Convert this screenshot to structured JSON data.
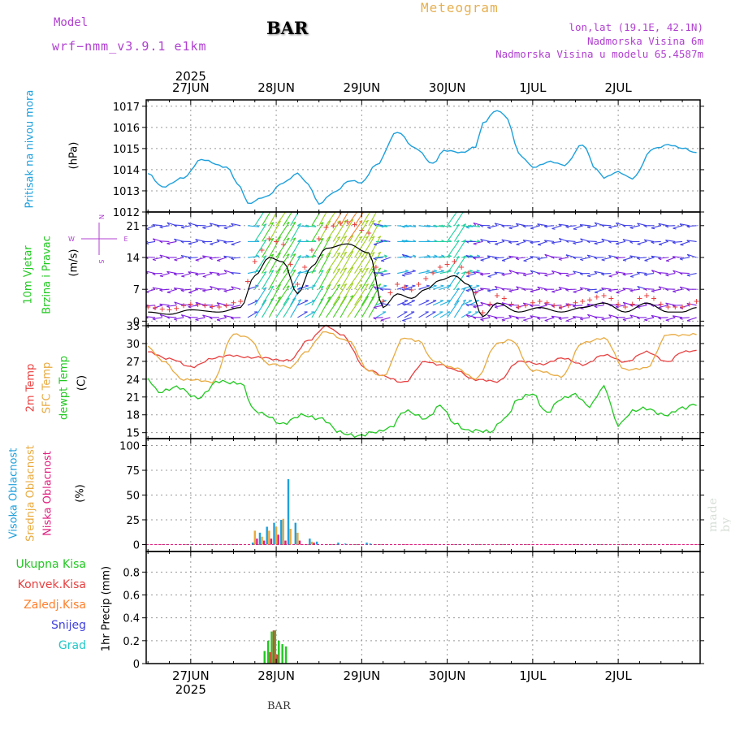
{
  "header": {
    "model_label": "Model",
    "model_value": "wrf−nmm_v3.9.1 e1km",
    "station": "BAR",
    "product": "Meteogram",
    "coords": "lon,lat (19.1E, 42.1N)",
    "elevation": "Nadmorska Visina 6m",
    "model_elevation": "Nadmorska Visina u modelu 65.4587m"
  },
  "footer": {
    "station": "BAR",
    "credit": "made by Angel"
  },
  "time_axis": {
    "year": "2025",
    "days": [
      "27JUN",
      "28JUN",
      "29JUN",
      "30JUN",
      "1JUL",
      "2JUL"
    ],
    "start": "26JUN 12",
    "end": "2JUL 18",
    "step_hours": 1
  },
  "colors": {
    "pressure": "#1ea0dc",
    "temp_2m": "#e84040",
    "temp_sfc": "#e8aa40",
    "dewpoint": "#20c820",
    "cloud_high": "#1ea0dc",
    "cloud_mid": "#e8aa40",
    "cloud_low": "#e02080",
    "precip_total": "#20c820",
    "precip_conv": "#e84040",
    "precip_frozen": "#ff7f2a",
    "snow": "#4040e0",
    "graupel": "#20c8c8",
    "wind_label": "#20c820",
    "compass": "#b040d0"
  },
  "chart_data": [
    {
      "id": "pressure",
      "type": "line",
      "ylabel_name": "Pritisak na nivou mora",
      "ylabel_unit": "(hPa)",
      "ylim": [
        1012,
        1017.3
      ],
      "yticks": [
        1012,
        1013,
        1014,
        1015,
        1016,
        1017
      ],
      "keypoints_hours": [
        0,
        4,
        10,
        15,
        22,
        26,
        28,
        33,
        38,
        42,
        45,
        48,
        52,
        57,
        60,
        64,
        70,
        75,
        80,
        83,
        88,
        92,
        94,
        98,
        100,
        105,
        108,
        113,
        117,
        122,
        126,
        128,
        132,
        136,
        142,
        146,
        150,
        154
      ],
      "keypoints_values": [
        1013.8,
        1013.2,
        1013.6,
        1014.5,
        1014.1,
        1013.2,
        1012.4,
        1012.7,
        1013.4,
        1013.8,
        1013.3,
        1012.4,
        1012.9,
        1013.5,
        1013.4,
        1014.2,
        1015.8,
        1015.0,
        1014.3,
        1014.9,
        1014.8,
        1015.1,
        1016.2,
        1016.8,
        1016.6,
        1014.6,
        1014.1,
        1014.4,
        1014.2,
        1015.2,
        1014.0,
        1013.6,
        1013.9,
        1013.6,
        1015.0,
        1015.2,
        1015.0,
        1014.8
      ]
    },
    {
      "id": "wind",
      "type": "scatter",
      "ylabel_name": "10m Vjetar",
      "ylabel_name2": "Brzina i Pravac",
      "ylabel_unit": "(m/s)",
      "compass": {
        "n": "N",
        "w": "W",
        "e": "E",
        "s": "S"
      },
      "ylim": [
        -1,
        24
      ],
      "yticks": [
        0,
        7,
        14,
        21
      ],
      "speed_keypoints_hours": [
        0,
        6,
        12,
        20,
        26,
        30,
        34,
        38,
        42,
        46,
        50,
        56,
        62,
        66,
        70,
        74,
        78,
        82,
        86,
        90,
        94,
        98,
        104,
        110,
        116,
        122,
        128,
        134,
        140,
        146,
        150,
        154
      ],
      "speed_keypoints_values": [
        2,
        1.5,
        2.5,
        2,
        3,
        10,
        14,
        13,
        6,
        12,
        16,
        17,
        15,
        3,
        6,
        5,
        7,
        9,
        10,
        8,
        1,
        4,
        2,
        3,
        2,
        3,
        4,
        2,
        4,
        2,
        2,
        3
      ]
    },
    {
      "id": "temperature",
      "type": "line",
      "ylabel_name": "2m Temp",
      "ylabel_name2": "SFC Temp",
      "ylabel_name3": "dewpt Temp",
      "ylabel_unit": "(C)",
      "ylim": [
        14,
        33
      ],
      "yticks": [
        15,
        18,
        21,
        24,
        27,
        30,
        33
      ],
      "series": [
        {
          "name": "2m Temp",
          "color": "#e84040",
          "keypoints_hours": [
            0,
            6,
            12,
            18,
            24,
            30,
            40,
            45,
            50,
            54,
            62,
            66,
            72,
            78,
            82,
            86,
            92,
            98,
            104,
            110,
            116,
            122,
            128,
            134,
            140,
            146,
            150,
            154
          ],
          "keypoints_values": [
            28.5,
            27.5,
            26,
            27.5,
            28,
            27.6,
            27.2,
            30.5,
            33,
            31.5,
            25.5,
            24.5,
            23.5,
            27,
            26.5,
            25.5,
            24,
            23.5,
            27,
            26.5,
            27.5,
            26.5,
            28,
            27,
            28.5,
            27,
            28.5,
            28.8
          ]
        },
        {
          "name": "SFC Temp",
          "color": "#e8aa40",
          "keypoints_hours": [
            0,
            4,
            10,
            18,
            24,
            28,
            34,
            40,
            44,
            50,
            56,
            62,
            66,
            72,
            76,
            80,
            86,
            92,
            98,
            102,
            108,
            116,
            122,
            128,
            134,
            140,
            146,
            150,
            154
          ],
          "keypoints_values": [
            29.5,
            27,
            24,
            23.5,
            31.5,
            31,
            26.5,
            26,
            28.5,
            32,
            30.5,
            25.5,
            24.5,
            31,
            30.5,
            27,
            26,
            24,
            30,
            30.5,
            25.5,
            24.5,
            30,
            31,
            25.5,
            26,
            31.5,
            31.5,
            31.5
          ]
        },
        {
          "name": "dewpt Temp",
          "color": "#20c820",
          "keypoints_hours": [
            0,
            3,
            8,
            14,
            20,
            26,
            30,
            33,
            38,
            44,
            48,
            54,
            60,
            64,
            68,
            72,
            78,
            82,
            86,
            90,
            96,
            100,
            104,
            108,
            112,
            116,
            120,
            124,
            128,
            132,
            136,
            140,
            146,
            150,
            154
          ],
          "keypoints_values": [
            24,
            22,
            22.5,
            21,
            23.5,
            23.5,
            18.5,
            18,
            16.5,
            18,
            17.5,
            15,
            14.5,
            15,
            16,
            18.5,
            17.5,
            19.5,
            16.5,
            15.5,
            15,
            17.5,
            20.5,
            21.5,
            18.5,
            20.5,
            21.5,
            19.5,
            22.5,
            16.5,
            18.5,
            19,
            18,
            19,
            20
          ]
        }
      ]
    },
    {
      "id": "cloud",
      "type": "bar",
      "ylabel_name": "Visoka Oblacnost",
      "ylabel_name2": "Srednja Oblacnost",
      "ylabel_name3": "Niska Oblacnost",
      "ylabel_unit": "(%)",
      "ylim": [
        -7,
        107
      ],
      "yticks": [
        0,
        25,
        50,
        75,
        100
      ],
      "series": [
        {
          "name": "Visoka Oblacnost",
          "color": "#1ea0dc",
          "hours": [
            30,
            32,
            34,
            36,
            38,
            40,
            42,
            46,
            48,
            54,
            56,
            62,
            63
          ],
          "values": [
            2,
            12,
            18,
            22,
            25,
            66,
            22,
            6,
            3,
            2,
            1,
            2,
            1
          ]
        },
        {
          "name": "Srednja Oblacnost",
          "color": "#e8aa40",
          "hours": [
            30,
            32,
            34,
            36,
            38,
            40,
            42,
            46
          ],
          "values": [
            14,
            8,
            14,
            18,
            26,
            16,
            12,
            3
          ]
        },
        {
          "name": "Niska Oblacnost",
          "color": "#e02080",
          "hours": [
            30,
            32,
            34,
            36,
            38,
            42,
            46
          ],
          "values": [
            6,
            4,
            6,
            10,
            4,
            4,
            2
          ]
        }
      ]
    },
    {
      "id": "precip",
      "type": "bar",
      "ylabel_name": "1hr Precip",
      "ylabel_unit": "(mm)",
      "legend": [
        "Ukupna Kisa",
        "Konvek.Kisa",
        "Zaledj.Kisa",
        "Snijeg",
        "Grad"
      ],
      "ylim": [
        0,
        0.98
      ],
      "yticks": [
        0,
        0.2,
        0.4,
        0.6,
        0.8
      ],
      "series": [
        {
          "name": "Ukupna Kisa",
          "color": "#20c820",
          "hours": [
            33,
            34,
            35,
            36,
            37,
            38,
            39
          ],
          "values": [
            0.11,
            0.2,
            0.28,
            0.29,
            0.2,
            0.17,
            0.15
          ]
        },
        {
          "name": "Konvek.Kisa",
          "color": "#e84040",
          "hours": [
            34,
            35,
            36
          ],
          "values": [
            0.1,
            0.29,
            0.08
          ]
        }
      ]
    }
  ]
}
